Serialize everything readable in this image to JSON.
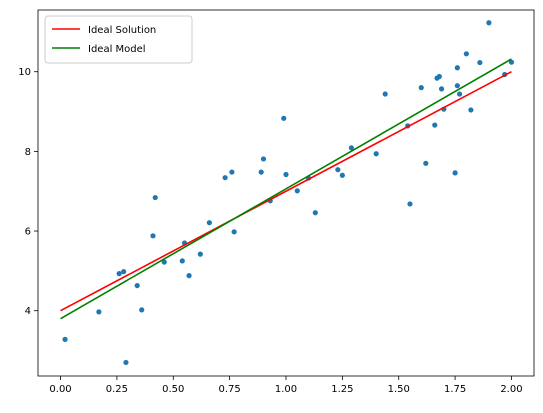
{
  "chart_data": {
    "type": "scatter",
    "title": "",
    "xlabel": "",
    "ylabel": "",
    "xlim": [
      -0.1,
      2.1
    ],
    "ylim": [
      2.36,
      11.55
    ],
    "x_ticks": [
      0.0,
      0.25,
      0.5,
      0.75,
      1.0,
      1.25,
      1.5,
      1.75,
      2.0
    ],
    "x_tick_labels": [
      "0.00",
      "0.25",
      "0.50",
      "0.75",
      "1.00",
      "1.25",
      "1.50",
      "1.75",
      "2.00"
    ],
    "y_ticks": [
      4,
      6,
      8,
      10
    ],
    "y_tick_labels": [
      "4",
      "6",
      "8",
      "10"
    ],
    "grid": false,
    "legend_position": "top-left",
    "points": {
      "color": "#1f77b4",
      "x": [
        0.02,
        0.17,
        0.26,
        0.28,
        0.29,
        0.34,
        0.36,
        0.41,
        0.42,
        0.46,
        0.54,
        0.55,
        0.57,
        0.62,
        0.66,
        0.73,
        0.76,
        0.77,
        0.89,
        0.9,
        0.93,
        0.99,
        1.0,
        1.05,
        1.1,
        1.13,
        1.23,
        1.25,
        1.29,
        1.4,
        1.44,
        1.54,
        1.55,
        1.6,
        1.62,
        1.66,
        1.67,
        1.68,
        1.69,
        1.7,
        1.75,
        1.76,
        1.76,
        1.77,
        1.8,
        1.82,
        1.86,
        1.9,
        1.97,
        2.0
      ],
      "y": [
        3.28,
        3.97,
        4.93,
        4.98,
        2.7,
        4.63,
        4.02,
        5.88,
        6.84,
        5.22,
        5.25,
        5.7,
        4.88,
        5.42,
        6.21,
        7.34,
        7.48,
        5.98,
        7.48,
        7.81,
        6.76,
        8.83,
        7.42,
        7.01,
        7.33,
        6.46,
        7.54,
        7.4,
        8.09,
        7.94,
        9.44,
        8.64,
        6.68,
        9.6,
        7.7,
        8.66,
        9.84,
        9.88,
        9.57,
        9.06,
        7.46,
        9.65,
        10.1,
        9.44,
        10.45,
        9.04,
        10.23,
        11.23,
        9.93,
        10.24
      ]
    },
    "series": [
      {
        "name": "Ideal Solution",
        "color": "#ff0000",
        "x": [
          0.0,
          2.0
        ],
        "y": [
          4.0,
          10.0
        ]
      },
      {
        "name": "Ideal Model",
        "color": "#008000",
        "x": [
          0.0,
          2.0
        ],
        "y": [
          3.8,
          10.32
        ]
      }
    ]
  }
}
